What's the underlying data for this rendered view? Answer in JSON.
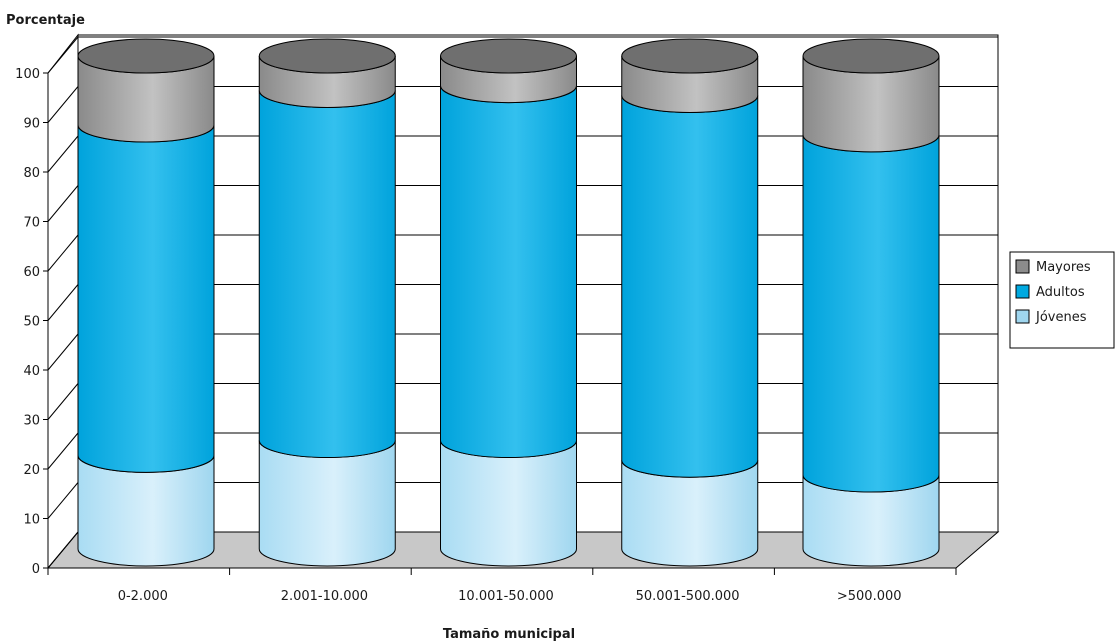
{
  "chart_data": {
    "type": "bar",
    "stacked": true,
    "style": "3d-cylinder",
    "ylabel": "Porcentaje",
    "xlabel": "Tamaño municipal",
    "ylim": [
      0,
      100
    ],
    "yticks": [
      0,
      10,
      20,
      30,
      40,
      50,
      60,
      70,
      80,
      90,
      100
    ],
    "categories": [
      "0-2.000",
      "2.001-10.000",
      "10.001-50.000",
      "50.001-500.000",
      ">500.000"
    ],
    "series": [
      {
        "name": "Jóvenes",
        "values": [
          19,
          22,
          22,
          18,
          15
        ],
        "color": "#9fd6ef"
      },
      {
        "name": "Adultos",
        "values": [
          67,
          71,
          72,
          74,
          69
        ],
        "color": "#00a9e0"
      },
      {
        "name": "Mayores",
        "values": [
          14,
          7,
          6,
          8,
          16
        ],
        "color": "#8c8c8c"
      }
    ],
    "legend_position": "right",
    "grid": true,
    "legend_order": [
      "Mayores",
      "Adultos",
      "Jóvenes"
    ]
  }
}
